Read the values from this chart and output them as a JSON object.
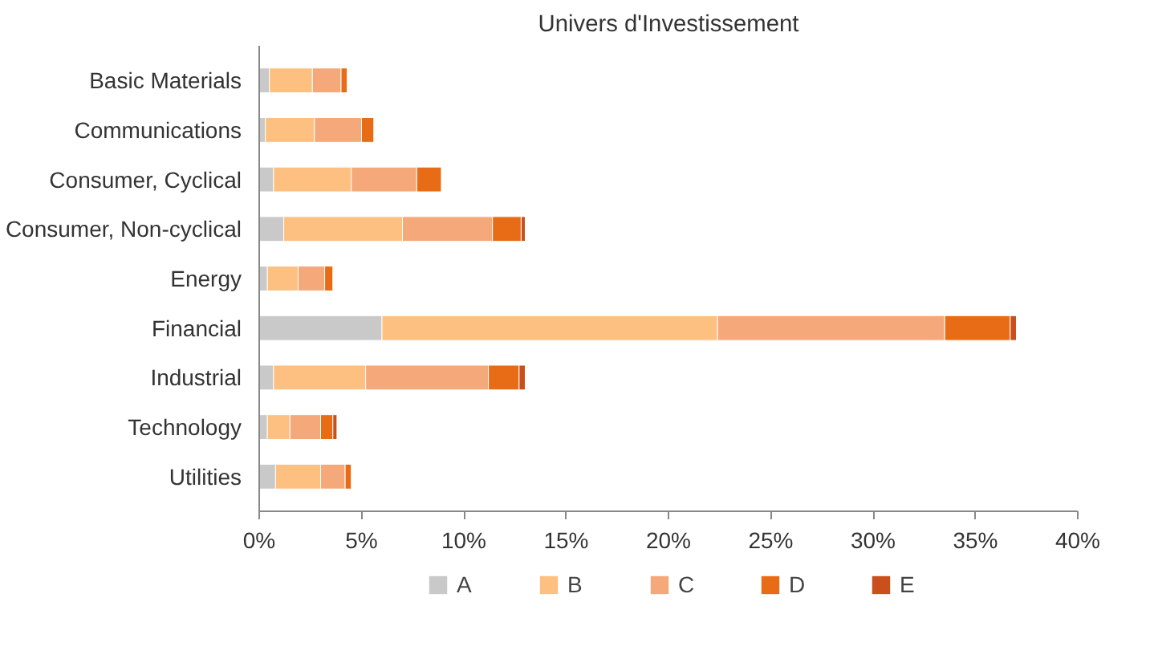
{
  "chart_data": {
    "type": "bar",
    "orientation": "horizontal",
    "stacked": true,
    "title": "Univers d'Investissement",
    "categories": [
      "Basic Materials",
      "Communications",
      "Consumer, Cyclical",
      "Consumer, Non-cyclical",
      "Energy",
      "Financial",
      "Industrial",
      "Technology",
      "Utilities"
    ],
    "series": [
      {
        "name": "A",
        "color": "#c9c9c9",
        "values": [
          0.5,
          0.3,
          0.7,
          1.2,
          0.4,
          6.0,
          0.7,
          0.4,
          0.8
        ]
      },
      {
        "name": "B",
        "color": "#fdc081",
        "values": [
          2.1,
          2.4,
          3.8,
          5.8,
          1.5,
          16.4,
          4.5,
          1.1,
          2.2
        ]
      },
      {
        "name": "C",
        "color": "#f5a87a",
        "values": [
          1.4,
          2.3,
          3.2,
          4.4,
          1.3,
          11.1,
          6.0,
          1.5,
          1.2
        ]
      },
      {
        "name": "D",
        "color": "#e86b16",
        "values": [
          0.3,
          0.6,
          1.2,
          1.4,
          0.4,
          3.2,
          1.5,
          0.6,
          0.3
        ]
      },
      {
        "name": "E",
        "color": "#c9501c",
        "values": [
          null,
          null,
          null,
          0.2,
          null,
          0.3,
          0.3,
          0.2,
          null
        ]
      }
    ],
    "xlim": [
      0,
      40
    ],
    "xticks": [
      {
        "value": 0,
        "label": "0%"
      },
      {
        "value": 5,
        "label": "5%"
      },
      {
        "value": 10,
        "label": "10%"
      },
      {
        "value": 15,
        "label": "15%"
      },
      {
        "value": 20,
        "label": "20%"
      },
      {
        "value": 25,
        "label": "25%"
      },
      {
        "value": 30,
        "label": "30%"
      },
      {
        "value": 35,
        "label": "35%"
      },
      {
        "value": 40,
        "label": "40%"
      }
    ],
    "grid": false,
    "legend": "bottom"
  }
}
